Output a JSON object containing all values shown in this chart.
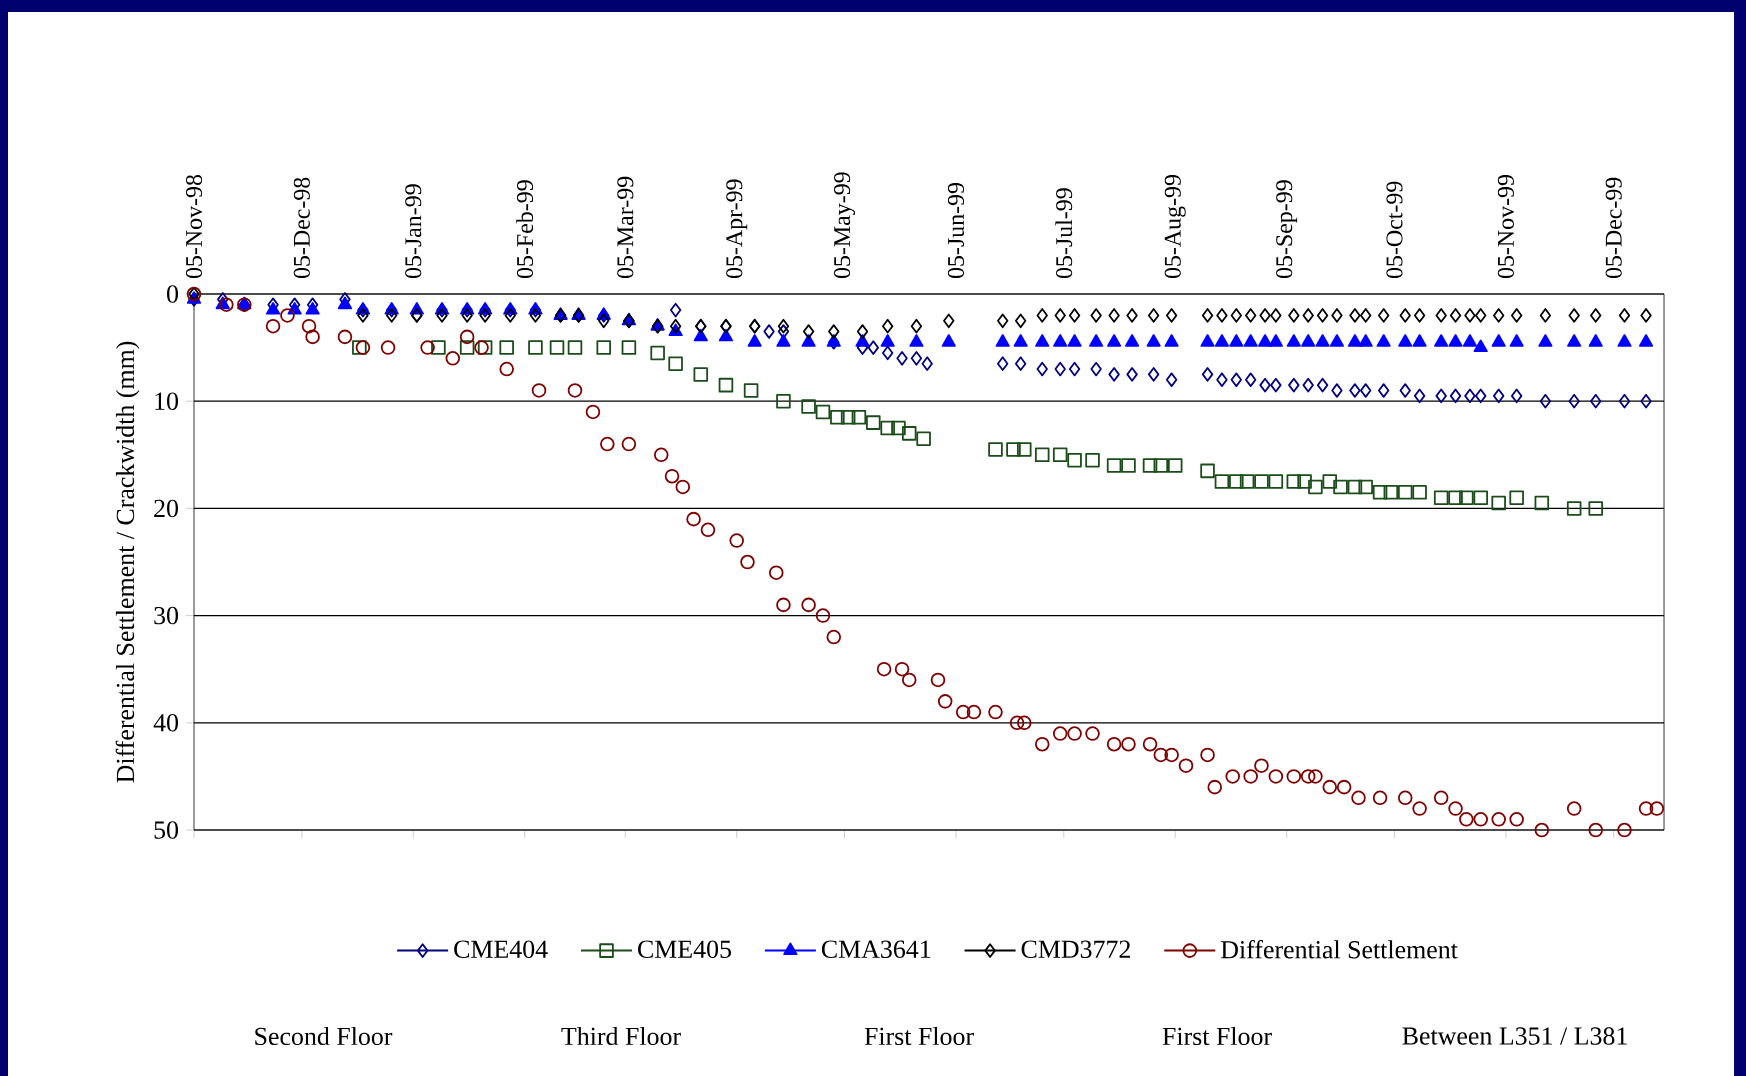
{
  "chart_data": {
    "type": "scatter",
    "ylabel": "Differential Settlement / Crackwidth (mm)",
    "xlim": [
      "1998-11-05",
      "1999-12-19"
    ],
    "ylim": [
      50,
      0
    ],
    "yticks": [
      0,
      10,
      20,
      30,
      40,
      50
    ],
    "xticks": [
      {
        "value": "1998-11-05",
        "label": "05-Nov-98"
      },
      {
        "value": "1998-12-05",
        "label": "05-Dec-98"
      },
      {
        "value": "1999-01-05",
        "label": "05-Jan-99"
      },
      {
        "value": "1999-02-05",
        "label": "05-Feb-99"
      },
      {
        "value": "1999-03-05",
        "label": "05-Mar-99"
      },
      {
        "value": "1999-04-05",
        "label": "05-Apr-99"
      },
      {
        "value": "1999-05-05",
        "label": "05-May-99"
      },
      {
        "value": "1999-06-05",
        "label": "05-Jun-99"
      },
      {
        "value": "1999-07-05",
        "label": "05-Jul-99"
      },
      {
        "value": "1999-08-05",
        "label": "05-Aug-99"
      },
      {
        "value": "1999-09-05",
        "label": "05-Sep-99"
      },
      {
        "value": "1999-10-05",
        "label": "05-Oct-99"
      },
      {
        "value": "1999-11-05",
        "label": "05-Nov-99"
      },
      {
        "value": "1999-12-05",
        "label": "05-Dec-99"
      }
    ],
    "grid": "y",
    "legend": "bottom",
    "annotations": [
      "Second Floor",
      "Third Floor",
      "First Floor",
      "First Floor",
      "Between L351 / L381"
    ],
    "series": [
      {
        "name": "CME404",
        "color": "#000080",
        "marker": "diamond",
        "x": [
          "1998-11-05",
          "1998-11-13",
          "1998-11-19",
          "1998-11-27",
          "1998-12-03",
          "1998-12-08",
          "1998-12-17",
          "1998-12-22",
          "1998-12-30",
          "1999-01-06",
          "1999-01-13",
          "1999-01-20",
          "1999-01-25",
          "1999-02-01",
          "1999-02-08",
          "1999-02-15",
          "1999-02-20",
          "1999-02-27",
          "1999-03-06",
          "1999-03-14",
          "1999-03-19",
          "1999-03-26",
          "1999-04-02",
          "1999-04-10",
          "1999-04-14",
          "1999-04-18",
          "1999-05-02",
          "1999-05-10",
          "1999-05-13",
          "1999-05-17",
          "1999-05-21",
          "1999-05-25",
          "1999-05-28",
          "1999-06-18",
          "1999-06-23",
          "1999-06-29",
          "1999-07-04",
          "1999-07-08",
          "1999-07-14",
          "1999-07-19",
          "1999-07-24",
          "1999-07-30",
          "1999-08-04",
          "1999-08-14",
          "1999-08-18",
          "1999-08-22",
          "1999-08-26",
          "1999-08-30",
          "1999-09-02",
          "1999-09-07",
          "1999-09-11",
          "1999-09-15",
          "1999-09-19",
          "1999-09-24",
          "1999-09-27",
          "1999-10-02",
          "1999-10-08",
          "1999-10-12",
          "1999-10-18",
          "1999-10-22",
          "1999-10-26",
          "1999-10-29",
          "1999-11-03",
          "1999-11-08",
          "1999-11-16",
          "1999-11-24",
          "1999-11-30",
          "1999-12-08",
          "1999-12-14"
        ],
        "values": [
          0.5,
          0.5,
          1,
          1,
          1,
          1,
          0.5,
          1.5,
          1.5,
          2,
          1.5,
          1.5,
          1.5,
          1.5,
          1.5,
          2,
          2,
          2,
          2.5,
          3,
          1.5,
          3,
          3,
          3,
          3.5,
          3.5,
          4.5,
          5,
          5,
          5.5,
          6,
          6,
          6.5,
          6.5,
          6.5,
          7,
          7,
          7,
          7,
          7.5,
          7.5,
          7.5,
          8,
          7.5,
          8,
          8,
          8,
          8.5,
          8.5,
          8.5,
          8.5,
          8.5,
          9,
          9,
          9,
          9,
          9,
          9.5,
          9.5,
          9.5,
          9.5,
          9.5,
          9.5,
          9.5,
          10,
          10,
          10,
          10,
          10
        ]
      },
      {
        "name": "CME405",
        "color": "#1a4d1a",
        "marker": "square",
        "x": [
          "1998-12-21",
          "1999-01-12",
          "1999-01-20",
          "1999-01-25",
          "1999-01-31",
          "1999-02-08",
          "1999-02-14",
          "1999-02-19",
          "1999-02-27",
          "1999-03-06",
          "1999-03-14",
          "1999-03-19",
          "1999-03-26",
          "1999-04-02",
          "1999-04-09",
          "1999-04-18",
          "1999-04-25",
          "1999-04-29",
          "1999-05-03",
          "1999-05-06",
          "1999-05-09",
          "1999-05-13",
          "1999-05-17",
          "1999-05-20",
          "1999-05-23",
          "1999-05-27",
          "1999-06-16",
          "1999-06-21",
          "1999-06-24",
          "1999-06-29",
          "1999-07-04",
          "1999-07-08",
          "1999-07-13",
          "1999-07-19",
          "1999-07-23",
          "1999-07-29",
          "1999-08-01",
          "1999-08-05",
          "1999-08-14",
          "1999-08-18",
          "1999-08-22",
          "1999-08-25",
          "1999-08-29",
          "1999-09-02",
          "1999-09-07",
          "1999-09-10",
          "1999-09-13",
          "1999-09-17",
          "1999-09-20",
          "1999-09-24",
          "1999-09-27",
          "1999-10-01",
          "1999-10-04",
          "1999-10-08",
          "1999-10-12",
          "1999-10-18",
          "1999-10-22",
          "1999-10-25",
          "1999-10-29",
          "1999-11-03",
          "1999-11-08",
          "1999-11-15",
          "1999-11-24",
          "1999-11-30"
        ],
        "values": [
          5,
          5,
          5,
          5,
          5,
          5,
          5,
          5,
          5,
          5,
          5.5,
          6.5,
          7.5,
          8.5,
          9,
          10,
          10.5,
          11,
          11.5,
          11.5,
          11.5,
          12,
          12.5,
          12.5,
          13,
          13.5,
          14.5,
          14.5,
          14.5,
          15,
          15,
          15.5,
          15.5,
          16,
          16,
          16,
          16,
          16,
          16.5,
          17.5,
          17.5,
          17.5,
          17.5,
          17.5,
          17.5,
          17.5,
          18,
          17.5,
          18,
          18,
          18,
          18.5,
          18.5,
          18.5,
          18.5,
          19,
          19,
          19,
          19,
          19.5,
          19,
          19.5,
          20,
          20
        ]
      },
      {
        "name": "CMA3641",
        "color": "#0000ff",
        "marker": "triangle",
        "x": [
          "1998-11-05",
          "1998-11-13",
          "1998-11-19",
          "1998-11-27",
          "1998-12-03",
          "1998-12-08",
          "1998-12-17",
          "1998-12-22",
          "1998-12-30",
          "1999-01-06",
          "1999-01-13",
          "1999-01-20",
          "1999-01-25",
          "1999-02-01",
          "1999-02-08",
          "1999-02-15",
          "1999-02-20",
          "1999-02-27",
          "1999-03-06",
          "1999-03-14",
          "1999-03-19",
          "1999-03-26",
          "1999-04-02",
          "1999-04-10",
          "1999-04-18",
          "1999-04-25",
          "1999-05-02",
          "1999-05-10",
          "1999-05-17",
          "1999-05-25",
          "1999-06-03",
          "1999-06-18",
          "1999-06-23",
          "1999-06-29",
          "1999-07-04",
          "1999-07-08",
          "1999-07-14",
          "1999-07-19",
          "1999-07-24",
          "1999-07-30",
          "1999-08-04",
          "1999-08-14",
          "1999-08-18",
          "1999-08-22",
          "1999-08-26",
          "1999-08-30",
          "1999-09-02",
          "1999-09-07",
          "1999-09-11",
          "1999-09-15",
          "1999-09-19",
          "1999-09-24",
          "1999-09-27",
          "1999-10-02",
          "1999-10-08",
          "1999-10-12",
          "1999-10-18",
          "1999-10-22",
          "1999-10-26",
          "1999-10-29",
          "1999-11-03",
          "1999-11-08",
          "1999-11-16",
          "1999-11-24",
          "1999-11-30",
          "1999-12-08",
          "1999-12-14"
        ],
        "values": [
          0.5,
          1,
          1,
          1.5,
          1.5,
          1.5,
          1,
          1.5,
          1.5,
          1.5,
          1.5,
          1.5,
          1.5,
          1.5,
          1.5,
          2,
          2,
          2,
          2.5,
          3,
          3.5,
          4,
          4,
          4.5,
          4.5,
          4.5,
          4.5,
          4.5,
          4.5,
          4.5,
          4.5,
          4.5,
          4.5,
          4.5,
          4.5,
          4.5,
          4.5,
          4.5,
          4.5,
          4.5,
          4.5,
          4.5,
          4.5,
          4.5,
          4.5,
          4.5,
          4.5,
          4.5,
          4.5,
          4.5,
          4.5,
          4.5,
          4.5,
          4.5,
          4.5,
          4.5,
          4.5,
          4.5,
          4.5,
          5,
          4.5,
          4.5,
          4.5,
          4.5,
          4.5,
          4.5,
          4.5
        ]
      },
      {
        "name": "CMD3772",
        "color": "#000000",
        "marker": "diamond",
        "x": [
          "1998-11-05",
          "1998-12-22",
          "1998-12-30",
          "1999-01-06",
          "1999-01-13",
          "1999-01-20",
          "1999-01-25",
          "1999-02-01",
          "1999-02-08",
          "1999-02-15",
          "1999-02-20",
          "1999-02-27",
          "1999-03-06",
          "1999-03-14",
          "1999-03-19",
          "1999-03-26",
          "1999-04-02",
          "1999-04-10",
          "1999-04-18",
          "1999-04-25",
          "1999-05-02",
          "1999-05-10",
          "1999-05-17",
          "1999-05-25",
          "1999-06-03",
          "1999-06-18",
          "1999-06-23",
          "1999-06-29",
          "1999-07-04",
          "1999-07-08",
          "1999-07-14",
          "1999-07-19",
          "1999-07-24",
          "1999-07-30",
          "1999-08-04",
          "1999-08-14",
          "1999-08-18",
          "1999-08-22",
          "1999-08-26",
          "1999-08-30",
          "1999-09-02",
          "1999-09-07",
          "1999-09-11",
          "1999-09-15",
          "1999-09-19",
          "1999-09-24",
          "1999-09-27",
          "1999-10-02",
          "1999-10-08",
          "1999-10-12",
          "1999-10-18",
          "1999-10-22",
          "1999-10-26",
          "1999-10-29",
          "1999-11-03",
          "1999-11-08",
          "1999-11-16",
          "1999-11-24",
          "1999-11-30",
          "1999-12-08",
          "1999-12-14"
        ],
        "values": [
          0,
          2,
          2,
          2,
          2,
          2,
          2,
          2,
          2,
          2,
          2,
          2.5,
          2.5,
          3,
          3,
          3,
          3,
          3,
          3,
          3.5,
          3.5,
          3.5,
          3,
          3,
          2.5,
          2.5,
          2.5,
          2,
          2,
          2,
          2,
          2,
          2,
          2,
          2,
          2,
          2,
          2,
          2,
          2,
          2,
          2,
          2,
          2,
          2,
          2,
          2,
          2,
          2,
          2,
          2,
          2,
          2,
          2,
          2,
          2,
          2,
          2,
          2,
          2,
          2
        ]
      },
      {
        "name": "Differential Settlement",
        "color": "#800000",
        "marker": "circle",
        "x": [
          "1998-11-05",
          "1998-11-14",
          "1998-11-19",
          "1998-11-27",
          "1998-12-01",
          "1998-12-07",
          "1998-12-08",
          "1998-12-17",
          "1998-12-22",
          "1998-12-29",
          "1999-01-09",
          "1999-01-16",
          "1999-01-20",
          "1999-01-24",
          "1999-01-31",
          "1999-02-09",
          "1999-02-19",
          "1999-02-24",
          "1999-02-28",
          "1999-03-06",
          "1999-03-15",
          "1999-03-18",
          "1999-03-21",
          "1999-03-24",
          "1999-03-28",
          "1999-04-05",
          "1999-04-08",
          "1999-04-16",
          "1999-04-18",
          "1999-04-25",
          "1999-04-29",
          "1999-05-02",
          "1999-05-16",
          "1999-05-21",
          "1999-05-23",
          "1999-05-31",
          "1999-06-02",
          "1999-06-07",
          "1999-06-10",
          "1999-06-16",
          "1999-06-22",
          "1999-06-24",
          "1999-06-29",
          "1999-07-04",
          "1999-07-08",
          "1999-07-13",
          "1999-07-19",
          "1999-07-23",
          "1999-07-29",
          "1999-08-01",
          "1999-08-04",
          "1999-08-08",
          "1999-08-14",
          "1999-08-16",
          "1999-08-21",
          "1999-08-26",
          "1999-08-29",
          "1999-09-02",
          "1999-09-07",
          "1999-09-11",
          "1999-09-13",
          "1999-09-17",
          "1999-09-21",
          "1999-09-25",
          "1999-10-01",
          "1999-10-08",
          "1999-10-12",
          "1999-10-18",
          "1999-10-22",
          "1999-10-25",
          "1999-10-29",
          "1999-11-03",
          "1999-11-08",
          "1999-11-15",
          "1999-11-24",
          "1999-11-30",
          "1999-12-08",
          "1999-12-14",
          "1999-12-17"
        ],
        "values": [
          0,
          1,
          1,
          3,
          2,
          3,
          4,
          4,
          5,
          5,
          5,
          6,
          4,
          5,
          7,
          9,
          9,
          11,
          14,
          14,
          15,
          17,
          18,
          21,
          22,
          23,
          25,
          26,
          29,
          29,
          30,
          32,
          35,
          35,
          36,
          36,
          38,
          39,
          39,
          39,
          40,
          40,
          42,
          41,
          41,
          41,
          42,
          42,
          42,
          43,
          43,
          44,
          43,
          46,
          45,
          45,
          44,
          45,
          45,
          45,
          45,
          46,
          46,
          47,
          47,
          47,
          48,
          47,
          48,
          49,
          49,
          49,
          49,
          50,
          48,
          50,
          50,
          48,
          48
        ]
      }
    ]
  }
}
